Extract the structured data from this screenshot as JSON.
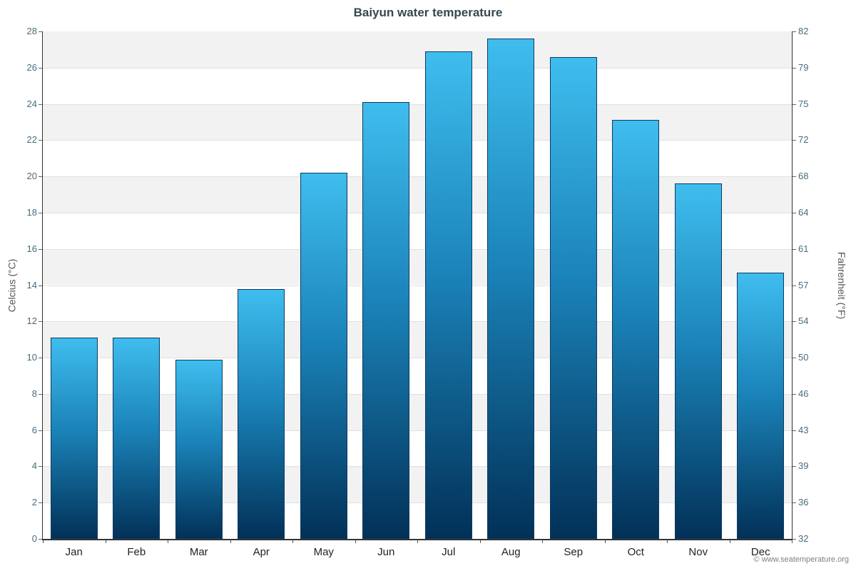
{
  "title": "Baiyun water temperature",
  "copyright": "© www.seatemperature.org",
  "chart_data": {
    "type": "bar",
    "title": "Baiyun water temperature",
    "categories": [
      "Jan",
      "Feb",
      "Mar",
      "Apr",
      "May",
      "Jun",
      "Jul",
      "Aug",
      "Sep",
      "Oct",
      "Nov",
      "Dec"
    ],
    "values": [
      11.1,
      11.1,
      9.9,
      13.8,
      20.2,
      24.1,
      26.9,
      27.6,
      26.6,
      23.1,
      19.6,
      14.7
    ],
    "xlabel": "",
    "ylabel": "Celcius (°C)",
    "ylabel_right": "Fahrenheit (°F)",
    "ylim": [
      0,
      28
    ],
    "yticks_celsius": [
      0,
      2,
      4,
      6,
      8,
      10,
      12,
      14,
      16,
      18,
      20,
      22,
      24,
      26,
      28
    ],
    "yticks_fahrenheit": [
      32,
      36,
      39,
      43,
      46,
      50,
      54,
      57,
      61,
      64,
      68,
      72,
      75,
      79,
      82
    ],
    "grid": true,
    "legend": "none",
    "colors": {
      "bar_top": "#3fbdee",
      "bar_mid": "#1b84ba",
      "bar_bottom": "#023158",
      "bar_border": "#0d3a62",
      "band": "#f2f2f2",
      "grid_line": "#e0e0e0",
      "axis_line": "#333333",
      "tick": "#666666",
      "tick_label": "#4a6b7c",
      "x_label": "#222222"
    }
  }
}
